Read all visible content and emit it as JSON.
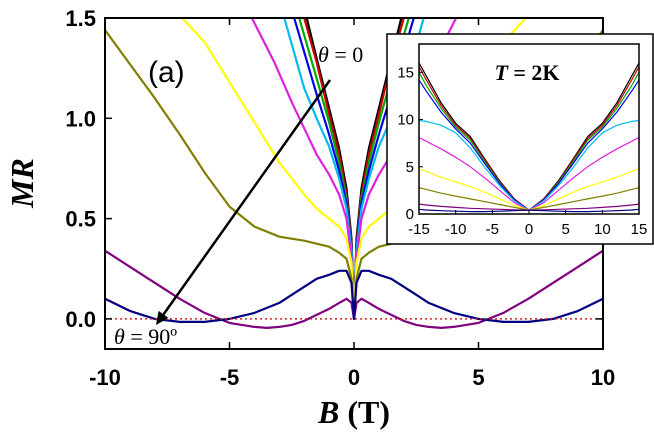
{
  "chart_data": [
    {
      "type": "line",
      "panel_label": "(a)",
      "xlabel": {
        "symbol": "B",
        "unit": " (T)"
      },
      "ylabel": "MR",
      "xlim": [
        -10,
        10
      ],
      "ylim": [
        -0.15,
        1.5
      ],
      "xticks": [
        -10,
        -5,
        0,
        5,
        10
      ],
      "xtick_labels": [
        "-10",
        "-5",
        "0",
        "5",
        "10"
      ],
      "yticks": [
        0.0,
        0.5,
        1.0,
        1.5
      ],
      "ytick_labels": [
        "0.0",
        "0.5",
        "1.0",
        "1.5"
      ],
      "annotations": {
        "top": {
          "symbol": "θ",
          "text": " = 0"
        },
        "bottom": {
          "symbol": "θ",
          "text": " = 90º"
        }
      },
      "reference_line": {
        "y": 0,
        "color": "#cc2222",
        "style": "dotted"
      },
      "series_colors": [
        "#000000",
        "#cc0000",
        "#00aa00",
        "#0000ee",
        "#00bbee",
        "#dd22dd",
        "#ffff00",
        "#808000",
        "#800080",
        "#000080"
      ],
      "series": [
        {
          "color": "#000000",
          "x": [
            0,
            0.1,
            0.3,
            0.6,
            1.0,
            1.5,
            1.9
          ],
          "y": [
            0,
            0.4,
            0.65,
            0.85,
            1.05,
            1.3,
            1.5
          ]
        },
        {
          "color": "#cc0000",
          "x": [
            0,
            0.1,
            0.3,
            0.6,
            1.0,
            1.5,
            2.0
          ],
          "y": [
            0,
            0.38,
            0.62,
            0.82,
            1.02,
            1.28,
            1.5
          ]
        },
        {
          "color": "#00aa00",
          "x": [
            0,
            0.1,
            0.3,
            0.6,
            1.0,
            1.5,
            2.2
          ],
          "y": [
            0,
            0.36,
            0.6,
            0.78,
            0.98,
            1.2,
            1.5
          ]
        },
        {
          "color": "#0000ee",
          "x": [
            0,
            0.1,
            0.3,
            0.6,
            1.0,
            1.5,
            2.4
          ],
          "y": [
            0,
            0.36,
            0.58,
            0.74,
            0.92,
            1.12,
            1.5
          ]
        },
        {
          "color": "#00bbee",
          "x": [
            0,
            0.1,
            0.3,
            0.6,
            1.0,
            1.5,
            2.0,
            2.8
          ],
          "y": [
            0,
            0.34,
            0.55,
            0.7,
            0.86,
            1.0,
            1.15,
            1.5
          ]
        },
        {
          "color": "#dd22dd",
          "x": [
            0,
            0.1,
            0.3,
            0.6,
            1.0,
            1.5,
            2.0,
            2.5,
            3.2,
            4.1
          ],
          "y": [
            0,
            0.3,
            0.5,
            0.62,
            0.72,
            0.82,
            0.95,
            1.08,
            1.28,
            1.5
          ]
        },
        {
          "color": "#ffff00",
          "x": [
            0,
            0.1,
            0.3,
            0.6,
            1.0,
            1.5,
            2.0,
            3.0,
            4.0,
            5.0,
            6.0,
            6.9
          ],
          "y": [
            0,
            0.28,
            0.4,
            0.46,
            0.5,
            0.55,
            0.62,
            0.78,
            0.98,
            1.18,
            1.38,
            1.5
          ]
        },
        {
          "color": "#808000",
          "x": [
            0,
            0.1,
            0.3,
            0.6,
            1.0,
            2.0,
            3.0,
            4.0,
            5.0,
            6.0,
            7.0,
            8.0,
            9.0,
            10.0
          ],
          "y": [
            0,
            0.2,
            0.3,
            0.33,
            0.36,
            0.39,
            0.41,
            0.46,
            0.56,
            0.73,
            0.92,
            1.1,
            1.27,
            1.44
          ]
        },
        {
          "color": "#800080",
          "x": [
            0,
            0.1,
            0.3,
            0.6,
            1.0,
            1.5,
            2.0,
            2.5,
            3.0,
            3.5,
            4.0,
            5.0,
            6.0,
            7.0,
            8.0,
            9.0,
            10.0
          ],
          "y": [
            0,
            0.08,
            0.1,
            0.08,
            0.05,
            0.02,
            -0.01,
            -0.03,
            -0.04,
            -0.045,
            -0.04,
            -0.02,
            0.03,
            0.1,
            0.18,
            0.26,
            0.34
          ]
        },
        {
          "color": "#000080",
          "x": [
            0,
            0.1,
            0.3,
            0.6,
            1.0,
            1.5,
            2.0,
            2.5,
            3.0,
            4.0,
            5.0,
            6.0,
            7.0,
            8.0,
            9.0,
            10.0
          ],
          "y": [
            0,
            0.18,
            0.24,
            0.24,
            0.22,
            0.2,
            0.16,
            0.12,
            0.08,
            0.03,
            0.0,
            -0.015,
            -0.015,
            0.0,
            0.04,
            0.1
          ]
        }
      ]
    },
    {
      "type": "line",
      "title": {
        "symbol": "T",
        "text": " = 2K"
      },
      "xlim": [
        -15,
        15
      ],
      "ylim": [
        0,
        18
      ],
      "xticks": [
        -15,
        -10,
        -5,
        0,
        5,
        10,
        15
      ],
      "xtick_labels": [
        "-15",
        "-10",
        "-5",
        "0",
        "5",
        "10",
        "15"
      ],
      "yticks": [
        0,
        5,
        10,
        15
      ],
      "ytick_labels": [
        "0",
        "5",
        "10",
        "15"
      ],
      "series": [
        {
          "color": "#000000",
          "x": [
            0,
            2,
            4,
            6,
            8,
            10,
            12,
            14,
            15
          ],
          "y": [
            0.4,
            1.6,
            3.5,
            5.8,
            8.2,
            9.6,
            11.8,
            14.6,
            16
          ]
        },
        {
          "color": "#cc0000",
          "x": [
            0,
            2,
            4,
            6,
            8,
            10,
            12,
            14,
            15
          ],
          "y": [
            0.4,
            1.6,
            3.4,
            5.7,
            8.0,
            9.4,
            11.5,
            14.2,
            15.6
          ]
        },
        {
          "color": "#00aa00",
          "x": [
            0,
            2,
            4,
            6,
            8,
            10,
            12,
            14,
            15
          ],
          "y": [
            0.4,
            1.5,
            3.3,
            5.5,
            7.8,
            9.2,
            11.2,
            13.6,
            15
          ]
        },
        {
          "color": "#0000ee",
          "x": [
            0,
            2,
            4,
            6,
            8,
            10,
            12,
            14,
            15
          ],
          "y": [
            0.4,
            1.5,
            3.2,
            5.3,
            7.5,
            9.0,
            10.8,
            13.0,
            14.2
          ]
        },
        {
          "color": "#00bbee",
          "x": [
            0,
            2,
            4,
            6,
            8,
            10,
            12,
            14,
            15
          ],
          "y": [
            0.4,
            1.4,
            3.0,
            4.9,
            7.0,
            8.6,
            9.4,
            9.8,
            9.9
          ]
        },
        {
          "color": "#dd22dd",
          "x": [
            0,
            2,
            4,
            6,
            8,
            10,
            12,
            14,
            15
          ],
          "y": [
            0.4,
            1.2,
            2.5,
            3.8,
            5.0,
            6.0,
            6.9,
            7.7,
            8.1
          ]
        },
        {
          "color": "#ffff00",
          "x": [
            0,
            2,
            4,
            6,
            8,
            10,
            12,
            14,
            15
          ],
          "y": [
            0.4,
            0.9,
            1.6,
            2.3,
            2.9,
            3.4,
            3.9,
            4.5,
            4.8
          ]
        },
        {
          "color": "#808000",
          "x": [
            0,
            2,
            4,
            6,
            8,
            10,
            12,
            14,
            15
          ],
          "y": [
            0.4,
            0.7,
            1.0,
            1.3,
            1.6,
            1.9,
            2.2,
            2.6,
            2.8
          ]
        },
        {
          "color": "#800080",
          "x": [
            0,
            2,
            4,
            6,
            8,
            10,
            12,
            14,
            15
          ],
          "y": [
            0.4,
            0.45,
            0.5,
            0.55,
            0.6,
            0.7,
            0.8,
            0.95,
            1.05
          ]
        },
        {
          "color": "#000080",
          "x": [
            0,
            2,
            4,
            6,
            8,
            10,
            12,
            14,
            15
          ],
          "y": [
            0.4,
            0.35,
            0.3,
            0.25,
            0.25,
            0.3,
            0.35,
            0.42,
            0.5
          ]
        }
      ]
    }
  ]
}
